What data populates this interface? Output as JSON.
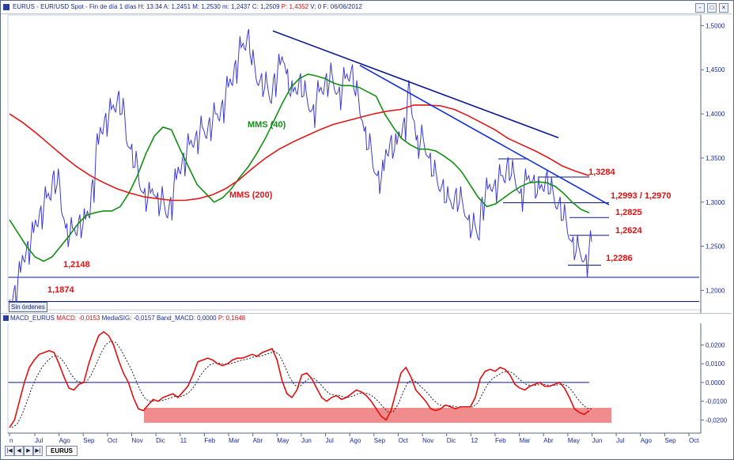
{
  "window": {
    "symbol": "EURUS",
    "instrument": "EUR/USD Spot",
    "period": "Fin de día 1 días",
    "ohlc_text": "H: 13:34  A: 1,2451  M: 1,2530  m: 1,2437  C: 1,2509",
    "p_text": "P: 1,4352",
    "tail_text": "V: 0  F: 06/06/2012",
    "buttons": [
      "-",
      "□",
      "×"
    ]
  },
  "macd_header": {
    "name": "MACD_EURUS",
    "values_red": "MACD: -0,0153",
    "values_mid": "MediaSIG: -0,0157",
    "values_blue": "Band_MACD: 0,0000",
    "values_p": "P: 0,1648"
  },
  "orders_label": "Sin órdenes",
  "tab_label": "EURUS",
  "nav_buttons": [
    "|◀",
    "◀",
    "▶",
    "▶|"
  ],
  "colors": {
    "price": "#3b3bd6",
    "mms40": "#138f13",
    "mms200": "#e01818",
    "trend": "#0a1890",
    "label_red": "#dd1111",
    "macd": "#e01010",
    "signal": "#222222",
    "zone": "#f08080",
    "axis_text": "#1a2a9a"
  },
  "chart_data": [
    {
      "type": "line",
      "panel": "price",
      "x_ticks": [
        "n",
        "Jul",
        "Ago",
        "Sep",
        "Oct",
        "Nov",
        "Dic",
        "11",
        "Feb",
        "Mar",
        "Abr",
        "May",
        "Jun",
        "Jul",
        "Ago",
        "Sep",
        "Oct",
        "Nov",
        "Dic",
        "12",
        "Feb",
        "Mar",
        "Abr",
        "May",
        "Jun",
        "Jul",
        "Ago",
        "Sep",
        "Oct"
      ],
      "y_ticks": [
        "1,5000",
        "1,4500",
        "1,4000",
        "1,3500",
        "1,3000",
        "1,2500",
        "1,2000"
      ],
      "ylim": [
        1.178,
        1.512
      ],
      "series_price": [
        1.19,
        1.2,
        1.215,
        1.24,
        1.25,
        1.26,
        1.28,
        1.29,
        1.3,
        1.31,
        1.33,
        1.32,
        1.29,
        1.27,
        1.265,
        1.27,
        1.28,
        1.275,
        1.29,
        1.32,
        1.36,
        1.385,
        1.395,
        1.4,
        1.41,
        1.42,
        1.4,
        1.37,
        1.36,
        1.34,
        1.32,
        1.31,
        1.305,
        1.315,
        1.305,
        1.3,
        1.29,
        1.3,
        1.32,
        1.34,
        1.35,
        1.36,
        1.37,
        1.375,
        1.38,
        1.38,
        1.39,
        1.395,
        1.4,
        1.41,
        1.425,
        1.44,
        1.455,
        1.47,
        1.48,
        1.49,
        1.455,
        1.44,
        1.44,
        1.43,
        1.42,
        1.44,
        1.45,
        1.465,
        1.445,
        1.42,
        1.43,
        1.44,
        1.42,
        1.41,
        1.405,
        1.42,
        1.43,
        1.44,
        1.44,
        1.43,
        1.425,
        1.435,
        1.445,
        1.45,
        1.42,
        1.4,
        1.38,
        1.36,
        1.34,
        1.33,
        1.33,
        1.36,
        1.37,
        1.36,
        1.38,
        1.39,
        1.42,
        1.4,
        1.37,
        1.37,
        1.36,
        1.35,
        1.33,
        1.32,
        1.32,
        1.3,
        1.3,
        1.31,
        1.3,
        1.29,
        1.28,
        1.27,
        1.265,
        1.3,
        1.31,
        1.32,
        1.32,
        1.325,
        1.33,
        1.345,
        1.33,
        1.32,
        1.31,
        1.32,
        1.33,
        1.325,
        1.31,
        1.32,
        1.33,
        1.31,
        1.3,
        1.3,
        1.28,
        1.265,
        1.255,
        1.245,
        1.24,
        1.235,
        1.25
      ],
      "series_mms40": [
        1.28,
        1.265,
        1.25,
        1.238,
        1.233,
        1.238,
        1.25,
        1.262,
        1.275,
        1.285,
        1.288,
        1.29,
        1.29,
        1.295,
        1.31,
        1.33,
        1.355,
        1.375,
        1.385,
        1.382,
        1.36,
        1.34,
        1.32,
        1.31,
        1.3,
        1.305,
        1.315,
        1.328,
        1.34,
        1.355,
        1.372,
        1.392,
        1.412,
        1.43,
        1.44,
        1.445,
        1.443,
        1.44,
        1.435,
        1.432,
        1.432,
        1.43,
        1.425,
        1.42,
        1.4,
        1.385,
        1.372,
        1.365,
        1.36,
        1.36,
        1.358,
        1.352,
        1.345,
        1.335,
        1.32,
        1.305,
        1.295,
        1.298,
        1.305,
        1.312,
        1.318,
        1.322,
        1.323,
        1.322,
        1.318,
        1.31,
        1.3,
        1.292,
        1.288
      ],
      "series_mms200": [
        1.4,
        1.39,
        1.378,
        1.365,
        1.352,
        1.34,
        1.33,
        1.322,
        1.315,
        1.31,
        1.306,
        1.304,
        1.302,
        1.302,
        1.304,
        1.308,
        1.315,
        1.325,
        1.338,
        1.35,
        1.36,
        1.368,
        1.375,
        1.382,
        1.388,
        1.392,
        1.396,
        1.4,
        1.403,
        1.405,
        1.41,
        1.41,
        1.409,
        1.405,
        1.398,
        1.39,
        1.382,
        1.372,
        1.365,
        1.358,
        1.35,
        1.341,
        1.335,
        1.33
      ],
      "trendlines": [
        {
          "from": [
            "May",
            1.494
          ],
          "to": [
            "Abr",
            1.373
          ]
        },
        {
          "from": [
            "Ago",
            1.455
          ],
          "to": [
            "Jun",
            1.297
          ]
        }
      ],
      "horizontal_levels": [
        1.3284,
        1.2993,
        1.2825,
        1.2624,
        1.2286,
        1.2148,
        1.1874
      ],
      "annotations": [
        {
          "text": "MMS (40)",
          "color": "green"
        },
        {
          "text": "MMS (200)",
          "color": "red"
        },
        {
          "text": "1,3284",
          "color": "red"
        },
        {
          "text": "1,2993 / 1,2970",
          "color": "red"
        },
        {
          "text": "1,2825",
          "color": "red"
        },
        {
          "text": "1,2624",
          "color": "red"
        },
        {
          "text": "1,2286",
          "color": "red"
        },
        {
          "text": "1,2148",
          "color": "red"
        },
        {
          "text": "1,1874",
          "color": "red"
        }
      ]
    },
    {
      "type": "line",
      "panel": "macd",
      "y_ticks": [
        "0,0200",
        "0,0100",
        "0,0000",
        "-0,0100",
        "-0,0200"
      ],
      "ylim": [
        -0.027,
        0.032
      ],
      "series_macd": [
        -0.024,
        -0.02,
        -0.01,
        0.0,
        0.008,
        0.012,
        0.015,
        0.016,
        0.017,
        0.016,
        0.01,
        0.003,
        -0.003,
        -0.004,
        -0.001,
        0.0,
        0.01,
        0.018,
        0.025,
        0.027,
        0.025,
        0.02,
        0.012,
        0.005,
        0.0,
        -0.008,
        -0.014,
        -0.015,
        -0.012,
        -0.009,
        -0.01,
        -0.008,
        -0.007,
        -0.006,
        -0.008,
        -0.005,
        -0.002,
        0.004,
        0.011,
        0.012,
        0.013,
        0.012,
        0.01,
        0.009,
        0.01,
        0.012,
        0.013,
        0.013,
        0.014,
        0.015,
        0.014,
        0.016,
        0.017,
        0.018,
        0.012,
        0.001,
        -0.006,
        -0.008,
        -0.004,
        0.004,
        0.005,
        0.002,
        -0.003,
        -0.008,
        -0.01,
        -0.008,
        -0.007,
        -0.009,
        -0.008,
        -0.006,
        -0.004,
        -0.005,
        -0.007,
        -0.01,
        -0.014,
        -0.018,
        -0.02,
        -0.015,
        -0.005,
        0.005,
        0.008,
        0.003,
        -0.004,
        -0.007,
        -0.01,
        -0.014,
        -0.015,
        -0.014,
        -0.012,
        -0.013,
        -0.014,
        -0.013,
        -0.013,
        -0.013,
        -0.008,
        0.002,
        0.006,
        0.007,
        0.006,
        0.008,
        0.007,
        0.004,
        -0.001,
        -0.003,
        -0.004,
        -0.002,
        -0.001,
        0.0,
        -0.002,
        -0.002,
        -0.001,
        0.0,
        -0.003,
        -0.008,
        -0.014,
        -0.016,
        -0.017,
        -0.015
      ],
      "series_signal": "trailing average of MACD",
      "zero_line": 0.0,
      "oversold_band": [
        -0.0215,
        -0.0135
      ]
    }
  ]
}
